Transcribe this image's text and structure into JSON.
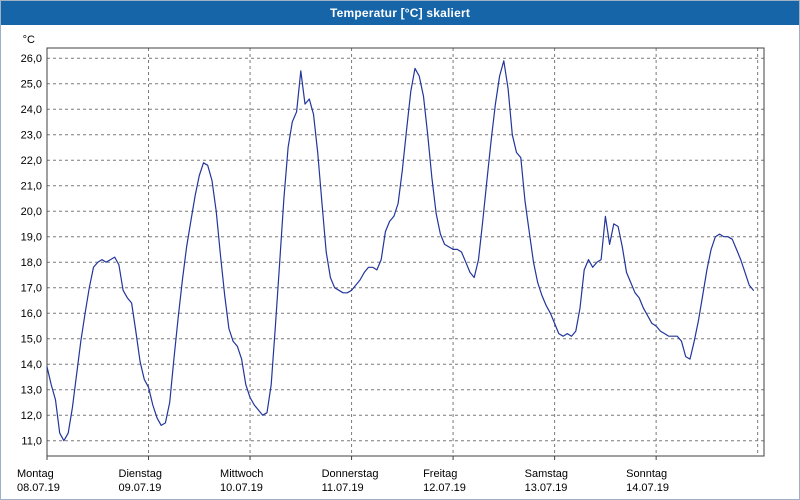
{
  "window": {
    "title_bar_color": "#1565a8"
  },
  "chart_data": {
    "type": "line",
    "title": "Temperatur [°C] skaliert",
    "y_unit": "°C",
    "xlabel": "",
    "ylabel": "°C",
    "line_color": "#22369b",
    "grid_color": "#7a7a7a",
    "axis_color": "#404040",
    "grid": "dashed",
    "legend": "none",
    "ylim": [
      10.4,
      26.4
    ],
    "xlim_hours": [
      0,
      169.5
    ],
    "y_ticks": [
      26,
      25,
      24,
      23,
      22,
      21,
      20,
      19,
      18,
      17,
      16,
      15,
      14,
      13,
      12,
      11
    ],
    "y_tick_labels": [
      "26,0",
      "25,0",
      "24,0",
      "23,0",
      "22,0",
      "21,0",
      "20,0",
      "19,0",
      "18,0",
      "17,0",
      "16,0",
      "15,0",
      "14,0",
      "13,0",
      "12,0",
      "11,0"
    ],
    "x_gridline_hours": [
      24,
      48,
      72,
      96,
      120,
      144,
      168
    ],
    "days": [
      {
        "name": "Montag",
        "date": "08.07.19",
        "start_hour": 0
      },
      {
        "name": "Dienstag",
        "date": "09.07.19",
        "start_hour": 24
      },
      {
        "name": "Mittwoch",
        "date": "10.07.19",
        "start_hour": 48
      },
      {
        "name": "Donnerstag",
        "date": "11.07.19",
        "start_hour": 72
      },
      {
        "name": "Freitag",
        "date": "12.07.19",
        "start_hour": 96
      },
      {
        "name": "Samstag",
        "date": "13.07.19",
        "start_hour": 120
      },
      {
        "name": "Sonntag",
        "date": "14.07.19",
        "start_hour": 144
      }
    ],
    "series": [
      {
        "name": "Temperatur",
        "start_hour": 0,
        "step_hours": 1,
        "values": [
          13.9,
          13.2,
          12.6,
          11.3,
          11.0,
          11.3,
          12.3,
          13.6,
          14.9,
          16.0,
          17.0,
          17.8,
          18.0,
          18.1,
          18.0,
          18.1,
          18.2,
          17.9,
          16.9,
          16.6,
          16.4,
          15.3,
          14.1,
          13.4,
          13.1,
          12.4,
          11.9,
          11.6,
          11.7,
          12.5,
          14.2,
          15.8,
          17.3,
          18.6,
          19.6,
          20.6,
          21.4,
          21.9,
          21.8,
          21.2,
          20.0,
          18.3,
          16.7,
          15.4,
          14.9,
          14.7,
          14.2,
          13.2,
          12.7,
          12.4,
          12.2,
          12.0,
          12.1,
          13.2,
          15.5,
          18.0,
          20.5,
          22.5,
          23.5,
          23.9,
          25.5,
          24.2,
          24.4,
          23.8,
          22.3,
          20.3,
          18.4,
          17.4,
          17.0,
          16.9,
          16.8,
          16.8,
          16.9,
          17.1,
          17.3,
          17.6,
          17.8,
          17.8,
          17.7,
          18.1,
          19.2,
          19.6,
          19.8,
          20.3,
          21.6,
          23.2,
          24.7,
          25.6,
          25.3,
          24.5,
          23.0,
          21.3,
          19.9,
          19.1,
          18.7,
          18.6,
          18.5,
          18.5,
          18.4,
          18.0,
          17.6,
          17.4,
          18.1,
          19.6,
          21.2,
          22.8,
          24.2,
          25.3,
          25.9,
          24.8,
          23.0,
          22.3,
          22.1,
          20.4,
          19.2,
          18.0,
          17.2,
          16.7,
          16.3,
          16.0,
          15.6,
          15.2,
          15.1,
          15.2,
          15.1,
          15.3,
          16.2,
          17.7,
          18.1,
          17.8,
          18.0,
          18.1,
          19.8,
          18.7,
          19.5,
          19.4,
          18.6,
          17.6,
          17.2,
          16.8,
          16.6,
          16.2,
          15.9,
          15.6,
          15.5,
          15.3,
          15.2,
          15.1,
          15.1,
          15.1,
          14.9,
          14.3,
          14.2,
          14.9,
          15.7,
          16.7,
          17.7,
          18.5,
          19.0,
          19.1,
          19.0,
          19.0,
          18.9,
          18.5,
          18.1,
          17.6,
          17.1,
          16.9
        ]
      }
    ]
  }
}
